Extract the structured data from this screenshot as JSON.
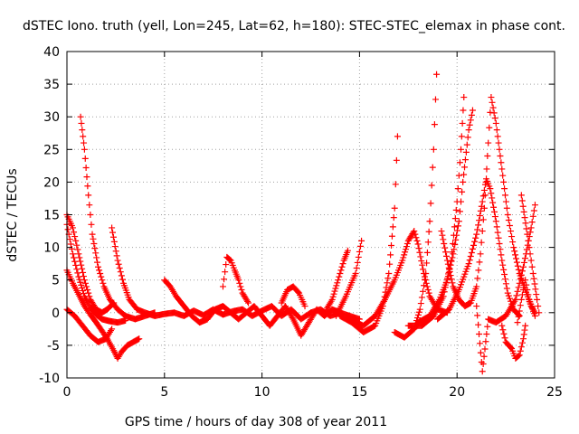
{
  "chart_data": {
    "type": "scatter",
    "title": "dSTEC Iono. truth (yell, Lon=245, Lat=62, h=180): STEC-STEC_elemax in phase cont.",
    "xlabel": "GPS time / hours of day 308 of year 2011",
    "ylabel": "dSTEC  / TECUs",
    "xlim": [
      0,
      25
    ],
    "ylim": [
      -10,
      40
    ],
    "x_ticks": [
      0,
      5,
      10,
      15,
      20,
      25
    ],
    "y_ticks": [
      -10,
      -5,
      0,
      5,
      10,
      15,
      20,
      25,
      30,
      35,
      40
    ],
    "grid": true,
    "marker": "plus",
    "color": "#ff0000",
    "arcs": [
      [
        [
          0.0,
          15.0
        ],
        [
          0.3,
          13.0
        ],
        [
          0.6,
          9.0
        ],
        [
          0.9,
          5.0
        ],
        [
          1.2,
          2.0
        ],
        [
          1.5,
          0.5
        ],
        [
          1.8,
          0.0
        ],
        [
          2.1,
          0.6
        ],
        [
          2.4,
          1.5
        ]
      ],
      [
        [
          0.0,
          13.5
        ],
        [
          0.3,
          9.0
        ],
        [
          0.6,
          5.5
        ],
        [
          0.9,
          2.5
        ],
        [
          1.2,
          0.8
        ],
        [
          1.5,
          -0.3
        ],
        [
          1.8,
          -1.0
        ],
        [
          2.2,
          -1.3
        ],
        [
          2.6,
          -1.5
        ],
        [
          3.0,
          -1.2
        ]
      ],
      [
        [
          0.0,
          6.5
        ],
        [
          0.3,
          4.5
        ],
        [
          0.6,
          2.8
        ],
        [
          0.9,
          1.0
        ],
        [
          1.2,
          -0.3
        ],
        [
          1.5,
          -1.5
        ],
        [
          1.8,
          -2.8
        ],
        [
          2.1,
          -4.2
        ],
        [
          2.4,
          -5.8
        ],
        [
          2.6,
          -7.0
        ],
        [
          2.8,
          -6.0
        ],
        [
          3.1,
          -5.0
        ],
        [
          3.4,
          -4.5
        ],
        [
          3.7,
          -4.0
        ]
      ],
      [
        [
          0.0,
          0.5
        ],
        [
          0.4,
          -0.5
        ],
        [
          0.8,
          -2.0
        ],
        [
          1.2,
          -3.5
        ],
        [
          1.6,
          -4.5
        ],
        [
          2.0,
          -4.0
        ],
        [
          2.3,
          -2.5
        ]
      ],
      [
        [
          0.7,
          30.0
        ],
        [
          0.9,
          25.0
        ],
        [
          1.1,
          18.0
        ],
        [
          1.3,
          12.0
        ],
        [
          1.6,
          7.0
        ],
        [
          1.9,
          4.0
        ],
        [
          2.2,
          2.0
        ],
        [
          2.6,
          0.5
        ],
        [
          3.0,
          -0.5
        ],
        [
          3.5,
          -1.0
        ],
        [
          4.0,
          -0.5
        ],
        [
          4.5,
          0.0
        ]
      ],
      [
        [
          2.3,
          13.0
        ],
        [
          2.6,
          8.0
        ],
        [
          2.9,
          4.5
        ],
        [
          3.2,
          2.0
        ],
        [
          3.6,
          0.5
        ],
        [
          4.0,
          0.0
        ],
        [
          4.5,
          -0.5
        ],
        [
          5.0,
          -0.2
        ],
        [
          5.5,
          0.0
        ],
        [
          6.0,
          -0.5
        ],
        [
          6.5,
          0.3
        ],
        [
          7.0,
          -0.4
        ],
        [
          7.5,
          0.5
        ],
        [
          8.0,
          -0.3
        ],
        [
          8.5,
          0.2
        ],
        [
          9.0,
          0.5
        ],
        [
          9.5,
          -0.5
        ],
        [
          10.0,
          0.3
        ],
        [
          10.5,
          1.0
        ],
        [
          11.0,
          -0.5
        ],
        [
          11.5,
          0.5
        ],
        [
          12.0,
          -1.0
        ],
        [
          12.5,
          0.0
        ],
        [
          13.0,
          0.5
        ],
        [
          13.5,
          -0.5
        ],
        [
          14.0,
          0.0
        ],
        [
          14.5,
          -0.5
        ],
        [
          15.0,
          -1.0
        ]
      ],
      [
        [
          5.0,
          5.0
        ],
        [
          5.3,
          4.0
        ],
        [
          5.6,
          2.5
        ],
        [
          6.0,
          1.0
        ],
        [
          6.4,
          -0.5
        ],
        [
          6.8,
          -1.5
        ],
        [
          7.2,
          -1.0
        ],
        [
          7.6,
          0.5
        ],
        [
          8.0,
          1.0
        ],
        [
          8.4,
          0.0
        ],
        [
          8.8,
          -1.0
        ],
        [
          9.2,
          0.0
        ],
        [
          9.6,
          1.0
        ],
        [
          10.0,
          -0.5
        ],
        [
          10.4,
          -2.0
        ],
        [
          10.8,
          -0.5
        ],
        [
          11.2,
          1.0
        ],
        [
          11.6,
          -1.0
        ],
        [
          12.0,
          -3.5
        ],
        [
          12.4,
          -1.5
        ],
        [
          12.8,
          0.5
        ],
        [
          13.2,
          -0.5
        ],
        [
          13.6,
          0.5
        ],
        [
          14.0,
          0.0
        ]
      ],
      [
        [
          8.0,
          4.0
        ],
        [
          8.2,
          8.5
        ],
        [
          8.4,
          8.0
        ],
        [
          8.6,
          6.5
        ],
        [
          8.8,
          5.0
        ],
        [
          9.0,
          3.0
        ],
        [
          9.3,
          1.5
        ]
      ],
      [
        [
          11.0,
          1.5
        ],
        [
          11.3,
          3.5
        ],
        [
          11.6,
          4.0
        ],
        [
          11.9,
          3.0
        ],
        [
          12.2,
          1.0
        ]
      ],
      [
        [
          13.3,
          0.5
        ],
        [
          13.6,
          2.0
        ],
        [
          13.9,
          5.0
        ],
        [
          14.2,
          8.0
        ],
        [
          14.4,
          9.5
        ]
      ],
      [
        [
          13.8,
          -0.5
        ],
        [
          14.3,
          2.5
        ],
        [
          14.8,
          6.0
        ],
        [
          15.1,
          11.0
        ]
      ],
      [
        [
          14.0,
          -0.5
        ],
        [
          14.6,
          -1.5
        ],
        [
          15.2,
          -3.0
        ],
        [
          15.8,
          -2.0
        ],
        [
          16.2,
          1.0
        ],
        [
          16.5,
          6.0
        ],
        [
          16.8,
          16.0
        ],
        [
          16.95,
          27.0
        ]
      ],
      [
        [
          14.5,
          -1.0
        ],
        [
          15.2,
          -2.0
        ],
        [
          15.8,
          -0.5
        ],
        [
          16.3,
          2.0
        ],
        [
          16.8,
          5.0
        ],
        [
          17.2,
          8.0
        ],
        [
          17.5,
          11.0
        ],
        [
          17.8,
          12.5
        ],
        [
          18.0,
          10.5
        ],
        [
          18.3,
          6.0
        ],
        [
          18.6,
          2.5
        ],
        [
          19.0,
          0.5
        ],
        [
          19.5,
          0.0
        ]
      ],
      [
        [
          16.8,
          -3.0
        ],
        [
          17.3,
          -3.8
        ],
        [
          17.8,
          -2.5
        ],
        [
          18.1,
          0.5
        ],
        [
          18.4,
          6.0
        ],
        [
          18.6,
          14.0
        ],
        [
          18.8,
          25.0
        ],
        [
          18.95,
          36.5
        ]
      ],
      [
        [
          17.5,
          -2.0
        ],
        [
          18.2,
          -2.0
        ],
        [
          18.8,
          -0.5
        ],
        [
          19.3,
          2.5
        ],
        [
          19.7,
          8.0
        ],
        [
          20.0,
          17.0
        ],
        [
          20.2,
          25.0
        ],
        [
          20.35,
          33.0
        ]
      ],
      [
        [
          18.0,
          -1.5
        ],
        [
          18.6,
          -0.5
        ],
        [
          19.1,
          2.0
        ],
        [
          19.5,
          5.0
        ],
        [
          19.8,
          9.0
        ],
        [
          20.1,
          14.0
        ],
        [
          20.3,
          20.0
        ],
        [
          20.6,
          28.0
        ],
        [
          20.8,
          31.0
        ]
      ],
      [
        [
          19.0,
          -1.0
        ],
        [
          19.6,
          0.5
        ],
        [
          20.1,
          3.5
        ],
        [
          20.6,
          7.5
        ],
        [
          21.0,
          12.0
        ],
        [
          21.3,
          17.0
        ],
        [
          21.5,
          20.5
        ],
        [
          21.7,
          19.0
        ],
        [
          22.0,
          14.0
        ],
        [
          22.3,
          8.0
        ],
        [
          22.6,
          3.0
        ],
        [
          22.9,
          0.5
        ],
        [
          23.2,
          -0.5
        ]
      ],
      [
        [
          19.2,
          12.5
        ],
        [
          19.5,
          8.0
        ],
        [
          19.8,
          4.0
        ],
        [
          20.1,
          2.0
        ],
        [
          20.4,
          1.0
        ],
        [
          20.7,
          1.5
        ],
        [
          21.0,
          4.0
        ],
        [
          21.2,
          9.0
        ],
        [
          21.4,
          16.0
        ],
        [
          21.6,
          26.0
        ],
        [
          21.75,
          33.0
        ],
        [
          22.0,
          29.0
        ],
        [
          22.3,
          22.0
        ],
        [
          22.6,
          15.0
        ],
        [
          22.9,
          10.0
        ],
        [
          23.2,
          6.0
        ],
        [
          23.5,
          3.5
        ],
        [
          23.8,
          1.0
        ],
        [
          24.0,
          0.0
        ]
      ],
      [
        [
          21.0,
          1.0
        ],
        [
          21.3,
          -9.0
        ],
        [
          21.6,
          -1.0
        ],
        [
          22.0,
          -1.5
        ],
        [
          22.5,
          -0.5
        ],
        [
          23.0,
          2.0
        ],
        [
          23.4,
          7.0
        ],
        [
          23.8,
          13.0
        ],
        [
          24.0,
          16.5
        ]
      ],
      [
        [
          22.3,
          -2.0
        ],
        [
          22.5,
          -4.5
        ],
        [
          22.8,
          -5.5
        ],
        [
          23.0,
          -7.0
        ],
        [
          23.2,
          -6.5
        ],
        [
          23.4,
          -4.0
        ],
        [
          23.5,
          -2.0
        ]
      ],
      [
        [
          23.1,
          -1.5
        ],
        [
          23.3,
          2.0
        ],
        [
          23.5,
          5.0
        ],
        [
          23.7,
          2.0
        ],
        [
          24.0,
          -0.5
        ]
      ],
      [
        [
          23.3,
          18.0
        ],
        [
          23.6,
          12.0
        ],
        [
          23.9,
          6.0
        ],
        [
          24.1,
          2.0
        ],
        [
          24.2,
          0.0
        ]
      ]
    ]
  }
}
